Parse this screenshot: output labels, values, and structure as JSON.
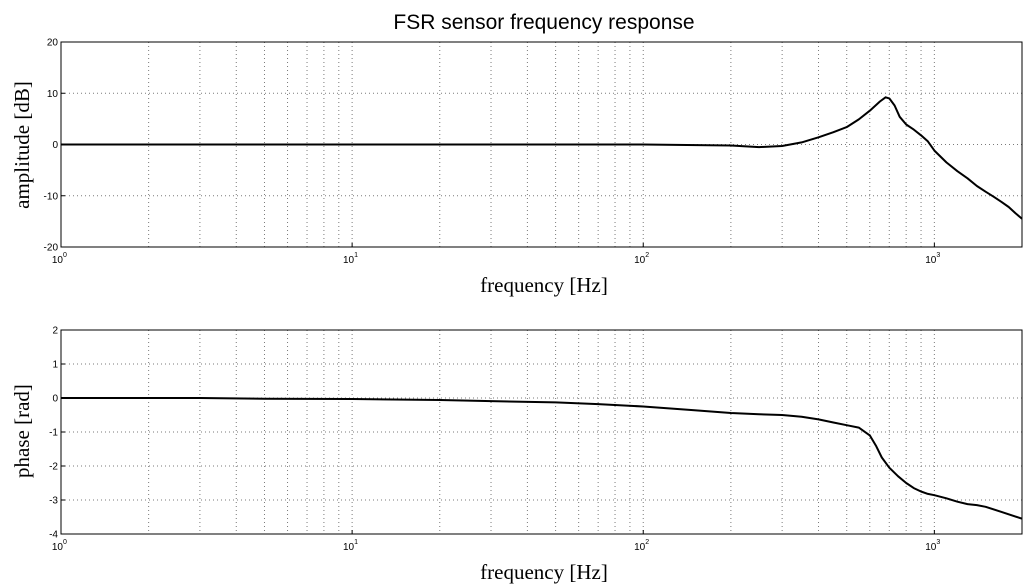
{
  "chart_data": [
    {
      "type": "line",
      "title": "FSR sensor frequency response",
      "xlabel": "frequency [Hz]",
      "ylabel": "amplitude [dB]",
      "xscale": "log",
      "xlim": [
        1,
        2000
      ],
      "ylim": [
        -20,
        20
      ],
      "yticks": [
        20,
        10,
        0,
        -10,
        -20
      ],
      "xtick_labels": [
        {
          "base": "10",
          "exp": "0"
        },
        {
          "base": "10",
          "exp": "1"
        },
        {
          "base": "10",
          "exp": "2"
        },
        {
          "base": "10",
          "exp": "3"
        }
      ],
      "grid": true,
      "series": [
        {
          "x": [
            1,
            10,
            100,
            200,
            250,
            300,
            350,
            400,
            450,
            500,
            550,
            600,
            650,
            680,
            700,
            730,
            760,
            800,
            850,
            900,
            950,
            1000,
            1100,
            1200,
            1300,
            1400,
            1500,
            1600,
            1700,
            1800,
            1900,
            2000
          ],
          "y": [
            0,
            0,
            0,
            -0.2,
            -0.5,
            -0.3,
            0.4,
            1.4,
            2.4,
            3.4,
            4.9,
            6.6,
            8.4,
            9.2,
            9.0,
            7.6,
            5.4,
            3.9,
            2.9,
            1.8,
            0.6,
            -1.2,
            -3.5,
            -5.2,
            -6.6,
            -8.1,
            -9.2,
            -10.2,
            -11.2,
            -12.2,
            -13.4,
            -14.5
          ]
        }
      ]
    },
    {
      "type": "line",
      "xlabel": "frequency [Hz]",
      "ylabel": "phase [rad]",
      "xscale": "log",
      "xlim": [
        1,
        2000
      ],
      "ylim": [
        -4,
        2
      ],
      "yticks": [
        2,
        1,
        0,
        -1,
        -2,
        -3,
        -4
      ],
      "xtick_labels": [
        {
          "base": "10",
          "exp": "0"
        },
        {
          "base": "10",
          "exp": "1"
        },
        {
          "base": "10",
          "exp": "2"
        },
        {
          "base": "10",
          "exp": "3"
        }
      ],
      "grid": true,
      "series": [
        {
          "x": [
            1,
            3,
            5,
            10,
            20,
            30,
            50,
            70,
            100,
            150,
            200,
            250,
            300,
            350,
            400,
            450,
            500,
            550,
            600,
            630,
            660,
            700,
            750,
            800,
            850,
            900,
            950,
            1000,
            1100,
            1200,
            1300,
            1400,
            1500,
            1700,
            2000
          ],
          "y": [
            0,
            0,
            -0.02,
            -0.03,
            -0.06,
            -0.09,
            -0.13,
            -0.18,
            -0.25,
            -0.36,
            -0.44,
            -0.48,
            -0.5,
            -0.55,
            -0.63,
            -0.72,
            -0.8,
            -0.87,
            -1.1,
            -1.4,
            -1.75,
            -2.05,
            -2.3,
            -2.5,
            -2.65,
            -2.75,
            -2.82,
            -2.86,
            -2.95,
            -3.05,
            -3.12,
            -3.15,
            -3.2,
            -3.35,
            -3.55
          ]
        }
      ]
    }
  ]
}
